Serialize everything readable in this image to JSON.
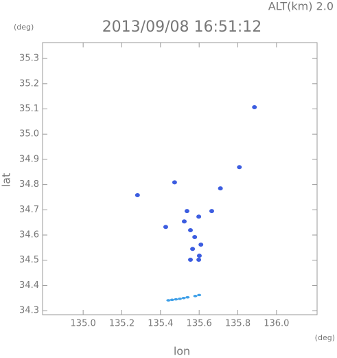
{
  "chart_data": {
    "type": "scatter",
    "annotation": "ALT(km) 2.0",
    "title": "2013/09/08 16:51:12",
    "y_unit": "(deg)",
    "x_unit": "(deg)",
    "ylabel": "lat",
    "xlabel": "lon",
    "xlim": [
      134.79,
      136.21
    ],
    "ylim": [
      34.284,
      35.363
    ],
    "xticks": [
      {
        "value": 135.0,
        "label": "135.0"
      },
      135.2,
      135.4,
      135.6,
      135.8,
      {
        "value": 136.0,
        "label": "136.0"
      }
    ],
    "yticks": [
      34.3,
      34.4,
      34.5,
      34.6,
      34.7,
      34.8,
      34.9,
      {
        "value": 35.0,
        "label": "35.0"
      },
      35.1,
      35.2,
      35.3
    ],
    "series": [
      {
        "color": "#3c5de0",
        "x": [
          135.886,
          135.808,
          135.427,
          135.537,
          135.665,
          135.598,
          135.523,
          135.555,
          135.577,
          135.609,
          135.566,
          135.601,
          135.555,
          135.598,
          135.281,
          135.473,
          135.71
        ],
        "values": [
          35.107,
          34.869,
          34.632,
          34.695,
          34.695,
          34.673,
          34.654,
          34.619,
          34.592,
          34.562,
          34.545,
          34.518,
          34.502,
          34.502,
          34.758,
          34.809,
          34.785
        ]
      },
      {
        "color": "#3fa0e8",
        "x": [
          135.441,
          135.46,
          135.48,
          135.5,
          135.52,
          135.54,
          135.58,
          135.6
        ],
        "values": [
          34.341,
          34.343,
          34.345,
          34.347,
          34.35,
          34.353,
          34.358,
          34.362
        ]
      }
    ]
  }
}
